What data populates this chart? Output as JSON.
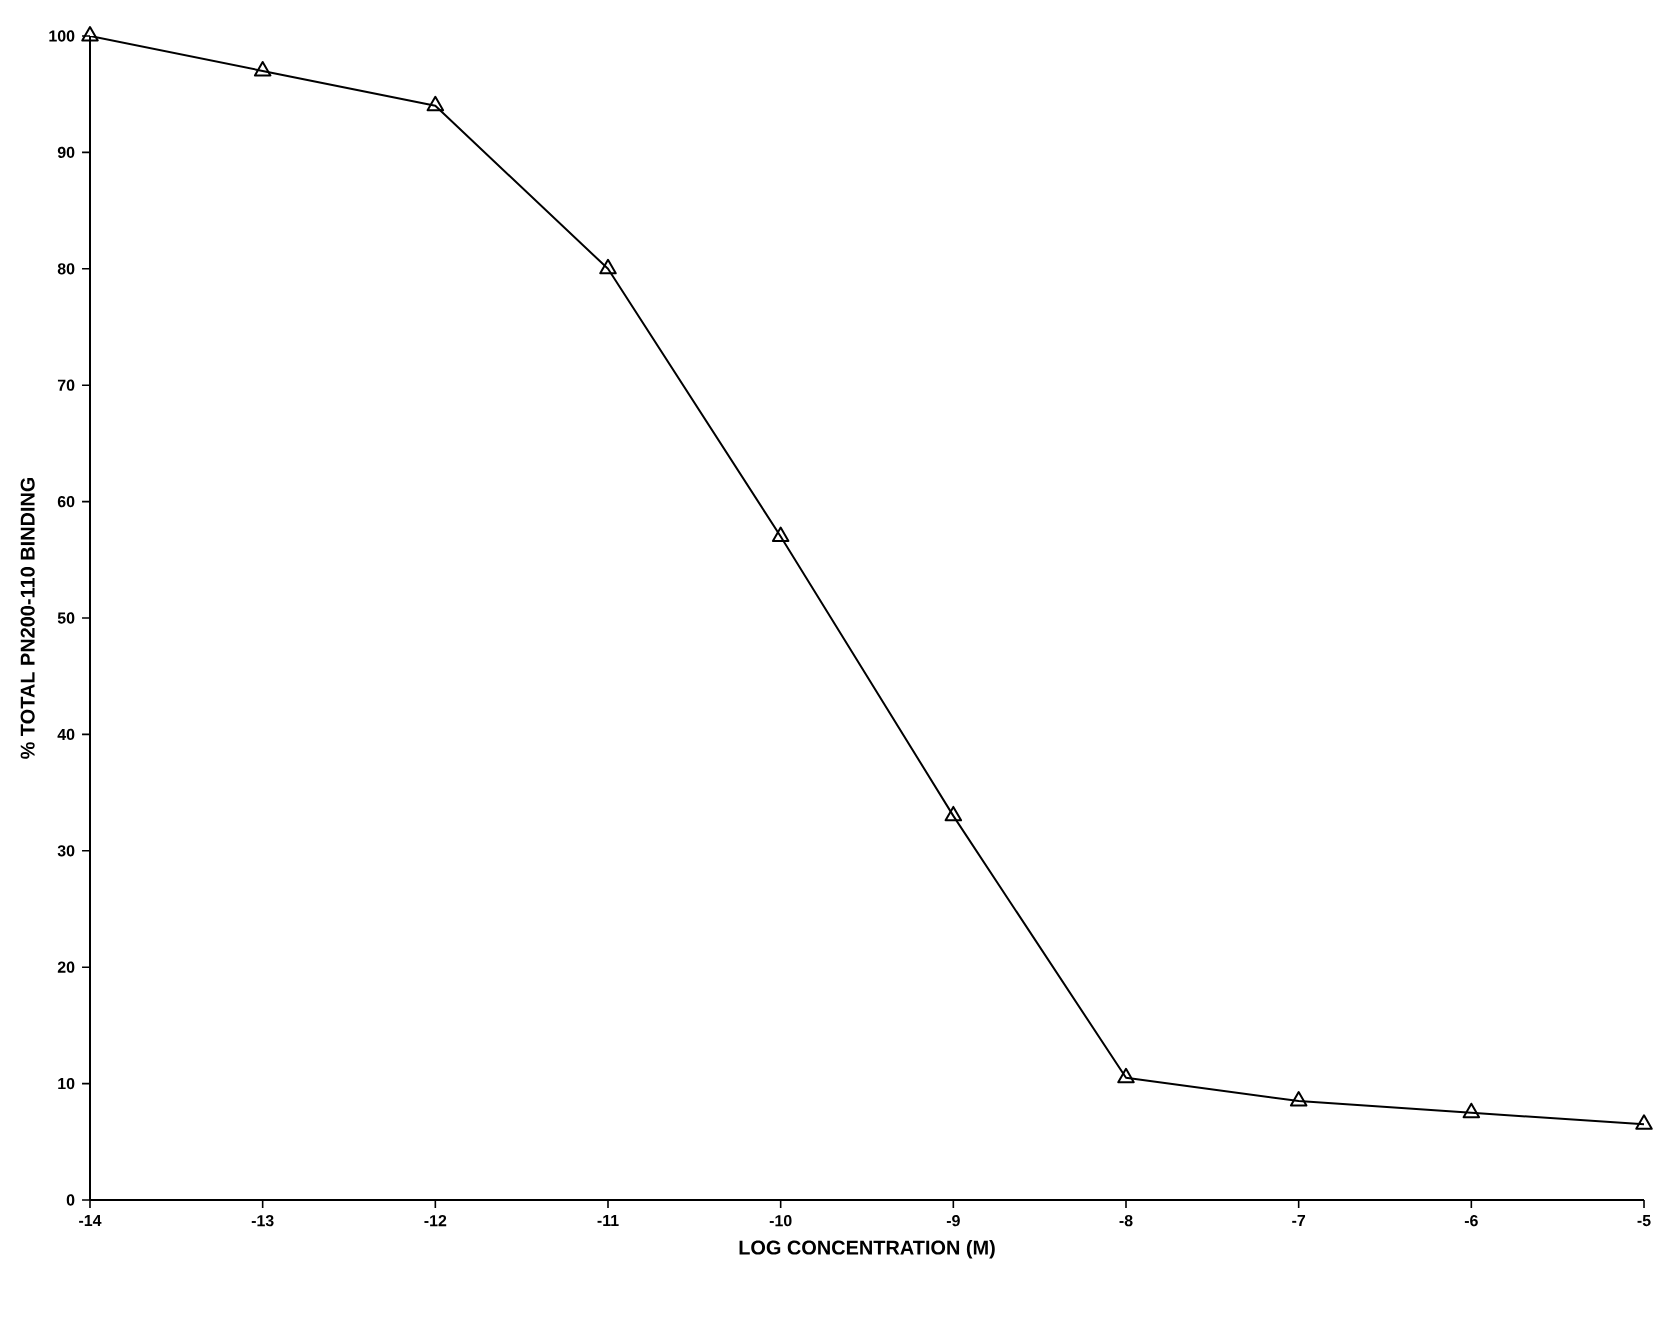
{
  "chart_data": {
    "type": "line",
    "xlabel": "LOG CONCENTRATION (M)",
    "ylabel": "% TOTAL PN200-110 BINDING",
    "x": [
      -14,
      -13,
      -12,
      -11,
      -10,
      -9,
      -8,
      -7,
      -6,
      -5
    ],
    "series": [
      {
        "color": "#000000",
        "values": [
          100,
          97,
          94,
          80,
          57,
          33,
          10.5,
          8.5,
          7.5,
          6.5
        ]
      }
    ],
    "xlim": [
      -14,
      -5
    ],
    "xticks": [
      -14,
      -13,
      -12,
      -11,
      -10,
      -9,
      -8,
      -7,
      -6,
      -5
    ],
    "ylim": [
      0,
      100
    ],
    "yticks": [
      0,
      10,
      20,
      30,
      40,
      50,
      60,
      70,
      80,
      90,
      100
    ],
    "marker": "triangle",
    "line_style": "solid",
    "grid": false,
    "legend": false
  }
}
